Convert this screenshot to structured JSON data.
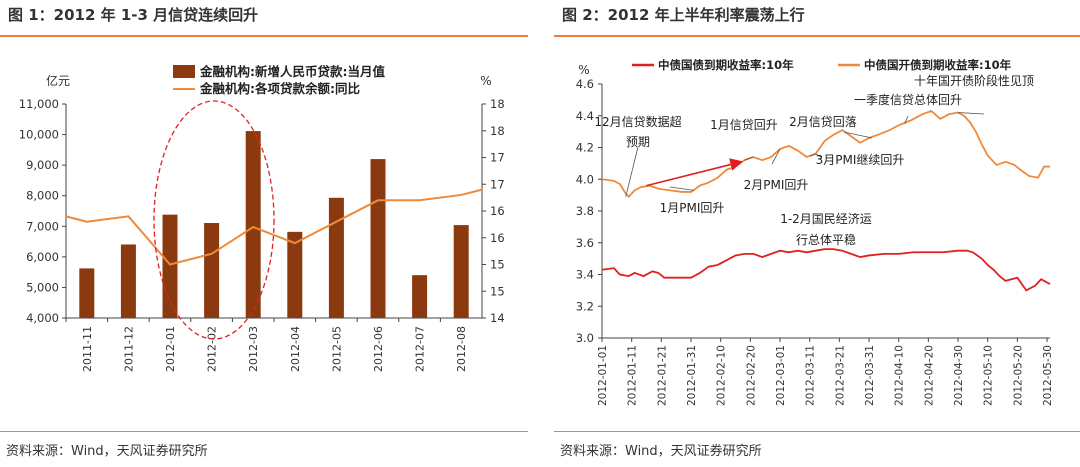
{
  "charts": [
    {
      "title": "图 1：2012 年 1-3 月信贷连续回升",
      "source": "资料来源：Wind，天风证券研究所",
      "chart_data": {
        "type": "bar",
        "categories": [
          "2011-11",
          "2011-12",
          "2012-01",
          "2012-02",
          "2012-03",
          "2012-04",
          "2012-05",
          "2012-06",
          "2012-07",
          "2012-08"
        ],
        "left_axis_label": "亿元",
        "right_axis_label": "%",
        "left_ticks": [
          "11,000",
          "10,000",
          "9,000",
          "8,000",
          "7,000",
          "6,000",
          "5,000",
          "4,000"
        ],
        "left_ylim": [
          4000,
          11000
        ],
        "right_ticks": [
          "18",
          "18",
          "17",
          "17",
          "16",
          "16",
          "15",
          "15",
          "14"
        ],
        "right_ylim": [
          14,
          18
        ],
        "series": [
          {
            "name": "金融机构:新增人民币贷款:当月值",
            "type": "bar",
            "axis": "left",
            "color": "#8b3a0f",
            "values": [
              5622,
              6405,
              7381,
              7107,
              10114,
              6818,
              7932,
              9198,
              5401,
              7039
            ]
          },
          {
            "name": "金融机构:各项贷款余额:同比",
            "type": "line",
            "axis": "right",
            "color": "#ef8a3c",
            "values": [
              15.8,
              15.9,
              15.0,
              15.2,
              15.7,
              15.4,
              15.8,
              16.2,
              16.2,
              16.3
            ],
            "end_value": 16.4
          }
        ],
        "annotation": "red dashed ellipse around 2012-01 to 2012-03"
      }
    },
    {
      "title": "图 2：2012 年上半年利率震荡上行",
      "source": "资料来源：Wind，天风证券研究所",
      "chart_data": {
        "type": "line",
        "y_axis_label": "%",
        "ylim": [
          3.0,
          4.6
        ],
        "y_ticks": [
          "4.6",
          "4.4",
          "4.2",
          "4.0",
          "3.8",
          "3.6",
          "3.4",
          "3.2",
          "3.0"
        ],
        "x_ticks": [
          "2012-01-01",
          "2012-01-11",
          "2012-01-21",
          "2012-01-31",
          "2012-02-10",
          "2012-02-20",
          "2012-03-01",
          "2012-03-11",
          "2012-03-21",
          "2012-03-31",
          "2012-04-10",
          "2012-04-20",
          "2012-04-30",
          "2012-05-10",
          "2012-05-20",
          "2012-05-30"
        ],
        "series": [
          {
            "name": "中债国债到期收益率:10年",
            "color": "#e02020",
            "points": [
              [
                "2012-01-01",
                3.43
              ],
              [
                "2012-01-05",
                3.44
              ],
              [
                "2012-01-07",
                3.4
              ],
              [
                "2012-01-10",
                3.39
              ],
              [
                "2012-01-12",
                3.41
              ],
              [
                "2012-01-15",
                3.39
              ],
              [
                "2012-01-18",
                3.42
              ],
              [
                "2012-01-20",
                3.41
              ],
              [
                "2012-01-22",
                3.38
              ],
              [
                "2012-01-26",
                3.38
              ],
              [
                "2012-01-31",
                3.38
              ],
              [
                "2012-02-03",
                3.41
              ],
              [
                "2012-02-06",
                3.45
              ],
              [
                "2012-02-09",
                3.46
              ],
              [
                "2012-02-12",
                3.49
              ],
              [
                "2012-02-15",
                3.52
              ],
              [
                "2012-02-18",
                3.53
              ],
              [
                "2012-02-21",
                3.53
              ],
              [
                "2012-02-24",
                3.51
              ],
              [
                "2012-02-27",
                3.53
              ],
              [
                "2012-03-01",
                3.55
              ],
              [
                "2012-03-04",
                3.54
              ],
              [
                "2012-03-07",
                3.55
              ],
              [
                "2012-03-10",
                3.54
              ],
              [
                "2012-03-13",
                3.55
              ],
              [
                "2012-03-16",
                3.56
              ],
              [
                "2012-03-19",
                3.56
              ],
              [
                "2012-03-22",
                3.55
              ],
              [
                "2012-03-25",
                3.53
              ],
              [
                "2012-03-28",
                3.51
              ],
              [
                "2012-03-31",
                3.52
              ],
              [
                "2012-04-05",
                3.53
              ],
              [
                "2012-04-10",
                3.53
              ],
              [
                "2012-04-15",
                3.54
              ],
              [
                "2012-04-20",
                3.54
              ],
              [
                "2012-04-25",
                3.54
              ],
              [
                "2012-04-30",
                3.55
              ],
              [
                "2012-05-03",
                3.55
              ],
              [
                "2012-05-05",
                3.54
              ],
              [
                "2012-05-08",
                3.5
              ],
              [
                "2012-05-10",
                3.46
              ],
              [
                "2012-05-12",
                3.43
              ],
              [
                "2012-05-14",
                3.39
              ],
              [
                "2012-05-16",
                3.36
              ],
              [
                "2012-05-18",
                3.37
              ],
              [
                "2012-05-20",
                3.38
              ],
              [
                "2012-05-23",
                3.3
              ],
              [
                "2012-05-26",
                3.33
              ],
              [
                "2012-05-28",
                3.37
              ],
              [
                "2012-05-30",
                3.35
              ],
              [
                "2012-05-31",
                3.34
              ]
            ]
          },
          {
            "name": "中债国开债到期收益率:10年",
            "color": "#ef8a3c",
            "points": [
              [
                "2012-01-01",
                4.0
              ],
              [
                "2012-01-05",
                3.99
              ],
              [
                "2012-01-07",
                3.97
              ],
              [
                "2012-01-09",
                3.91
              ],
              [
                "2012-01-10",
                3.89
              ],
              [
                "2012-01-12",
                3.93
              ],
              [
                "2012-01-14",
                3.95
              ],
              [
                "2012-01-17",
                3.96
              ],
              [
                "2012-01-20",
                3.94
              ],
              [
                "2012-01-24",
                3.93
              ],
              [
                "2012-01-28",
                3.92
              ],
              [
                "2012-01-31",
                3.92
              ],
              [
                "2012-02-03",
                3.96
              ],
              [
                "2012-02-06",
                3.98
              ],
              [
                "2012-02-09",
                4.01
              ],
              [
                "2012-02-12",
                4.06
              ],
              [
                "2012-02-15",
                4.08
              ],
              [
                "2012-02-18",
                4.12
              ],
              [
                "2012-02-21",
                4.14
              ],
              [
                "2012-02-24",
                4.12
              ],
              [
                "2012-02-27",
                4.14
              ],
              [
                "2012-03-01",
                4.19
              ],
              [
                "2012-03-04",
                4.21
              ],
              [
                "2012-03-07",
                4.18
              ],
              [
                "2012-03-10",
                4.14
              ],
              [
                "2012-03-13",
                4.16
              ],
              [
                "2012-03-16",
                4.24
              ],
              [
                "2012-03-19",
                4.28
              ],
              [
                "2012-03-22",
                4.31
              ],
              [
                "2012-03-25",
                4.27
              ],
              [
                "2012-03-28",
                4.23
              ],
              [
                "2012-03-31",
                4.26
              ],
              [
                "2012-04-03",
                4.28
              ],
              [
                "2012-04-07",
                4.31
              ],
              [
                "2012-04-10",
                4.34
              ],
              [
                "2012-04-14",
                4.37
              ],
              [
                "2012-04-18",
                4.41
              ],
              [
                "2012-04-21",
                4.43
              ],
              [
                "2012-04-24",
                4.38
              ],
              [
                "2012-04-27",
                4.41
              ],
              [
                "2012-04-30",
                4.42
              ],
              [
                "2012-05-02",
                4.4
              ],
              [
                "2012-05-04",
                4.36
              ],
              [
                "2012-05-06",
                4.3
              ],
              [
                "2012-05-08",
                4.22
              ],
              [
                "2012-05-10",
                4.15
              ],
              [
                "2012-05-13",
                4.09
              ],
              [
                "2012-05-16",
                4.11
              ],
              [
                "2012-05-19",
                4.09
              ],
              [
                "2012-05-21",
                4.06
              ],
              [
                "2012-05-24",
                4.02
              ],
              [
                "2012-05-27",
                4.01
              ],
              [
                "2012-05-29",
                4.08
              ],
              [
                "2012-05-31",
                4.08
              ]
            ]
          }
        ],
        "annotations": [
          {
            "text": "12月信贷数据超",
            "line2": "预期",
            "date": "2012-01-09",
            "value": 3.89
          },
          {
            "text": "1月PMI回升",
            "date": "2012-02-01",
            "value": 3.93
          },
          {
            "text": "1月信贷回升",
            "date": "2012-02-18",
            "value": 4.12
          },
          {
            "text": "2月PMI回升",
            "date": "2012-03-01",
            "value": 4.19
          },
          {
            "text": "2月信贷回落",
            "date": "2012-03-13",
            "value": 4.16
          },
          {
            "text": "1-2月国民经济运",
            "line2": "行总体平稳",
            "date": "2012-03-13",
            "value": 4.16
          },
          {
            "text": "3月PMI继续回升",
            "date": "2012-04-01",
            "value": 4.26
          },
          {
            "text": "一季度信贷总体回升",
            "date": "2012-04-12",
            "value": 4.35
          },
          {
            "text": "十年国开债阶段性见顶",
            "date": "2012-04-30",
            "value": 4.42
          }
        ]
      }
    }
  ]
}
